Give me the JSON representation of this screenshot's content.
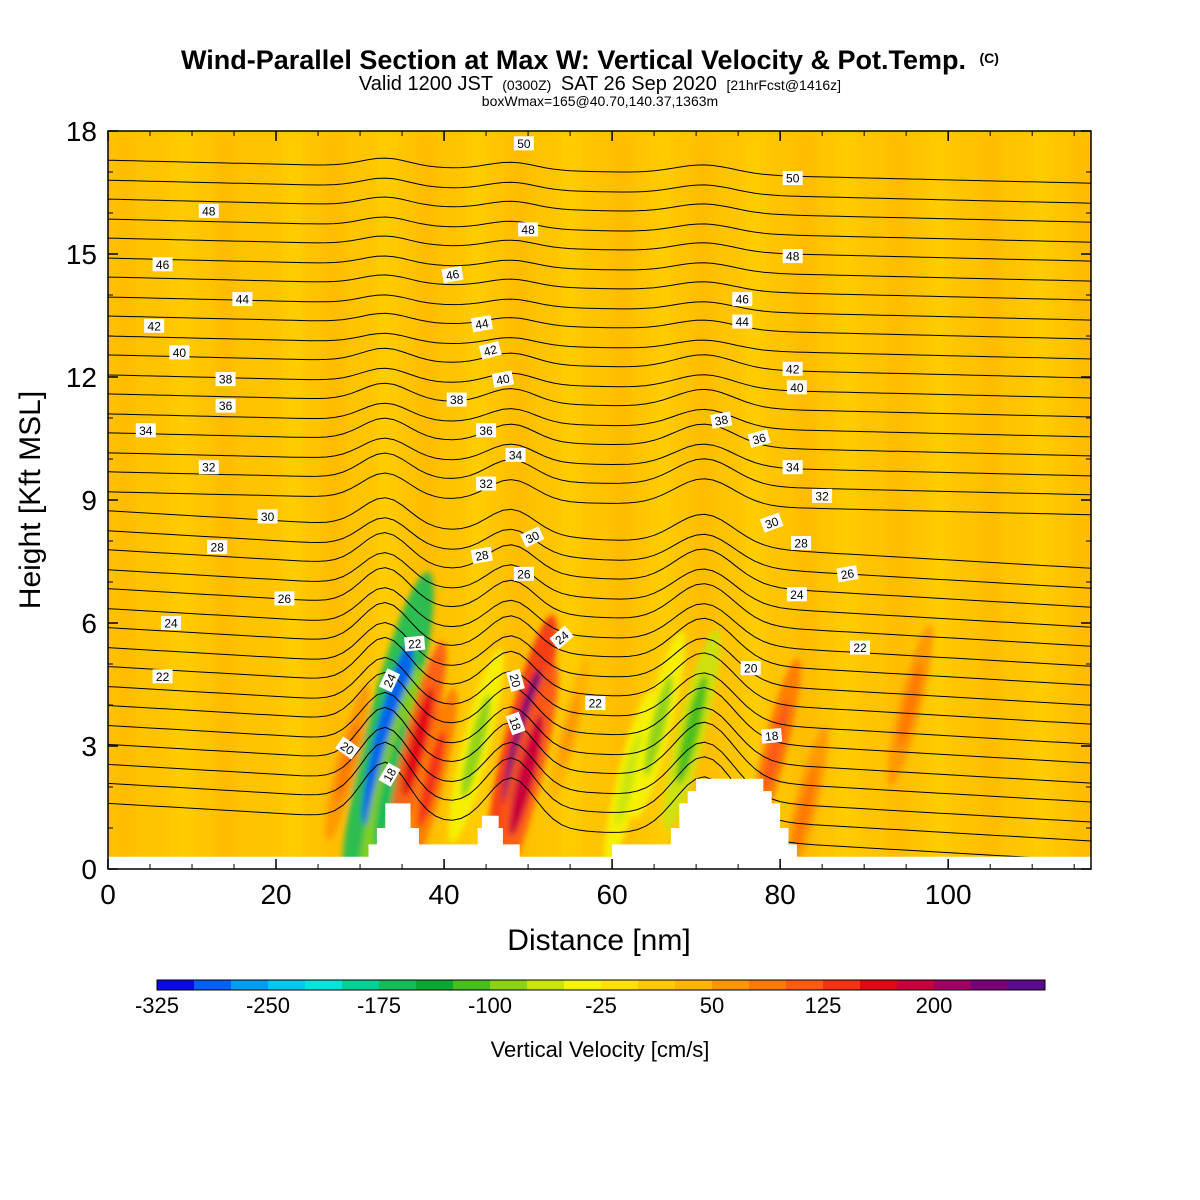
{
  "chart_data": {
    "type": "heatmap",
    "title": "Wind-Parallel Section at Max W: Vertical Velocity & Pot.Temp.",
    "title_mark": "(C)",
    "subtitle": {
      "valid_a": "Valid 1200 JST",
      "valid_b": "(0300Z)",
      "valid_c": "SAT 26 Sep 2020",
      "valid_d": "[21hrFcst@1416z]"
    },
    "subtitle2": "boxWmax=165@40.70,140.37,1363m",
    "xlabel": "Distance [nm]",
    "ylabel": "Height [Kft MSL]",
    "xlim": [
      0,
      117
    ],
    "ylim": [
      0,
      18
    ],
    "xticks": [
      "0",
      "20",
      "40",
      "60",
      "80",
      "100"
    ],
    "yticks": [
      "0",
      "3",
      "6",
      "9",
      "12",
      "15",
      "18"
    ],
    "colorbar": {
      "title": "Vertical Velocity [cm/s]",
      "tick_labels": [
        "-325",
        "-250",
        "-175",
        "-100",
        "-25",
        "50",
        "125",
        "200"
      ],
      "colors": [
        "#0a0ae8",
        "#005ff5",
        "#009cf5",
        "#00c8f0",
        "#00e6dc",
        "#00d296",
        "#14bc5a",
        "#0aa830",
        "#46be1e",
        "#8cd214",
        "#c8e60a",
        "#f5f500",
        "#ffe100",
        "#ffc800",
        "#ffb400",
        "#ff9600",
        "#ff7800",
        "#ff5a14",
        "#f53214",
        "#e10a14",
        "#c8003c",
        "#a00064",
        "#780078",
        "#5a0a8c"
      ]
    },
    "background_colors": {
      "weak_up": "#ffb400",
      "weak_down": "#ffd700",
      "ridge": "#ffffff"
    },
    "terrain_nm_kft": [
      [
        0,
        0.3
      ],
      [
        31,
        0.3
      ],
      [
        31,
        0.6
      ],
      [
        32,
        0.6
      ],
      [
        32,
        1
      ],
      [
        33,
        1
      ],
      [
        33,
        1.6
      ],
      [
        36,
        1.6
      ],
      [
        36,
        1
      ],
      [
        37,
        1
      ],
      [
        37,
        0.6
      ],
      [
        44,
        0.6
      ],
      [
        44,
        1
      ],
      [
        44.5,
        1
      ],
      [
        44.5,
        1.3
      ],
      [
        46.5,
        1.3
      ],
      [
        46.5,
        1
      ],
      [
        47,
        1
      ],
      [
        47,
        0.6
      ],
      [
        49,
        0.6
      ],
      [
        49,
        0.3
      ],
      [
        60,
        0.3
      ],
      [
        60,
        0.6
      ],
      [
        67,
        0.6
      ],
      [
        67,
        1
      ],
      [
        68,
        1
      ],
      [
        68,
        1.6
      ],
      [
        69,
        1.6
      ],
      [
        69,
        1.9
      ],
      [
        70,
        1.9
      ],
      [
        70,
        2.2
      ],
      [
        78,
        2.2
      ],
      [
        78,
        1.9
      ],
      [
        79,
        1.9
      ],
      [
        79,
        1.6
      ],
      [
        80,
        1.6
      ],
      [
        80,
        1
      ],
      [
        81,
        1
      ],
      [
        81,
        0.6
      ],
      [
        82,
        0.6
      ],
      [
        82,
        0.3
      ],
      [
        117,
        0.3
      ],
      [
        117,
        0
      ]
    ],
    "cells": [
      {
        "x": 33.3,
        "z": 3.3,
        "w": -320
      },
      {
        "x": 33.8,
        "z": 2.1,
        "w": -180
      },
      {
        "x": 36.9,
        "z": 3.1,
        "w": 130
      },
      {
        "x": 38.5,
        "z": 2.2,
        "w": 100
      },
      {
        "x": 43.8,
        "z": 3.0,
        "w": -120
      },
      {
        "x": 49.3,
        "z": 3.2,
        "w": 200
      },
      {
        "x": 49.8,
        "z": 2.3,
        "w": 165
      },
      {
        "x": 55,
        "z": 3.4,
        "w": 40
      },
      {
        "x": 62,
        "z": 2.2,
        "w": -90
      },
      {
        "x": 65.5,
        "z": 3.5,
        "w": -110
      },
      {
        "x": 69.5,
        "z": 3.4,
        "w": -130
      },
      {
        "x": 79.5,
        "z": 3.0,
        "w": 90
      },
      {
        "x": 83,
        "z": 1.5,
        "w": 70
      },
      {
        "x": 95.5,
        "z": 4.0,
        "w": 70
      },
      {
        "x": 28.5,
        "z": 2.6,
        "w": 60
      }
    ],
    "theta_levels": [
      18,
      20,
      22,
      24,
      26,
      28,
      30,
      32,
      34,
      36,
      38,
      40,
      42,
      44,
      46,
      48,
      50
    ],
    "contour_labels": [
      {
        "text": "50",
        "x": 49.5,
        "z": 17.7,
        "rot": 0
      },
      {
        "text": "50",
        "x": 81.5,
        "z": 16.85,
        "rot": 0
      },
      {
        "text": "48",
        "x": 12,
        "z": 16.05,
        "rot": 0
      },
      {
        "text": "48",
        "x": 50,
        "z": 15.6,
        "rot": 0
      },
      {
        "text": "48",
        "x": 81.5,
        "z": 14.95,
        "rot": 0
      },
      {
        "text": "46",
        "x": 6.5,
        "z": 14.75,
        "rot": 0
      },
      {
        "text": "46",
        "x": 41,
        "z": 14.5,
        "rot": -10
      },
      {
        "text": "46",
        "x": 75.5,
        "z": 13.9,
        "rot": 0
      },
      {
        "text": "44",
        "x": 16,
        "z": 13.9,
        "rot": 0
      },
      {
        "text": "44",
        "x": 44.5,
        "z": 13.3,
        "rot": -10
      },
      {
        "text": "44",
        "x": 75.5,
        "z": 13.35,
        "rot": 0
      },
      {
        "text": "42",
        "x": 5.5,
        "z": 13.25,
        "rot": 0
      },
      {
        "text": "42",
        "x": 45.5,
        "z": 12.65,
        "rot": -15
      },
      {
        "text": "42",
        "x": 81.5,
        "z": 12.2,
        "rot": 0
      },
      {
        "text": "40",
        "x": 8.5,
        "z": 12.6,
        "rot": 0
      },
      {
        "text": "40",
        "x": 47,
        "z": 11.95,
        "rot": -10
      },
      {
        "text": "40",
        "x": 82,
        "z": 11.75,
        "rot": 0
      },
      {
        "text": "38",
        "x": 14,
        "z": 11.95,
        "rot": 0
      },
      {
        "text": "38",
        "x": 41.5,
        "z": 11.45,
        "rot": 0
      },
      {
        "text": "38",
        "x": 73,
        "z": 10.95,
        "rot": -10
      },
      {
        "text": "36",
        "x": 14,
        "z": 11.3,
        "rot": 0
      },
      {
        "text": "36",
        "x": 45,
        "z": 10.7,
        "rot": 0
      },
      {
        "text": "36",
        "x": 77.5,
        "z": 10.5,
        "rot": -15
      },
      {
        "text": "34",
        "x": 4.5,
        "z": 10.7,
        "rot": 0
      },
      {
        "text": "34",
        "x": 48.5,
        "z": 10.1,
        "rot": 0
      },
      {
        "text": "34",
        "x": 81.5,
        "z": 9.8,
        "rot": 0
      },
      {
        "text": "32",
        "x": 12,
        "z": 9.8,
        "rot": 0
      },
      {
        "text": "32",
        "x": 45,
        "z": 9.4,
        "rot": 0
      },
      {
        "text": "32",
        "x": 85,
        "z": 9.1,
        "rot": 0
      },
      {
        "text": "30",
        "x": 19,
        "z": 8.6,
        "rot": 0
      },
      {
        "text": "30",
        "x": 50.5,
        "z": 8.1,
        "rot": -25
      },
      {
        "text": "30",
        "x": 79,
        "z": 8.45,
        "rot": -20
      },
      {
        "text": "28",
        "x": 13,
        "z": 7.85,
        "rot": 0
      },
      {
        "text": "28",
        "x": 44.5,
        "z": 7.65,
        "rot": -10
      },
      {
        "text": "28",
        "x": 82.5,
        "z": 7.95,
        "rot": 0
      },
      {
        "text": "26",
        "x": 21,
        "z": 6.6,
        "rot": 0
      },
      {
        "text": "26",
        "x": 49.5,
        "z": 7.2,
        "rot": 0
      },
      {
        "text": "26",
        "x": 88,
        "z": 7.2,
        "rot": -10
      },
      {
        "text": "24",
        "x": 7.5,
        "z": 6.0,
        "rot": 0
      },
      {
        "text": "24",
        "x": 33.5,
        "z": 4.6,
        "rot": -65
      },
      {
        "text": "24",
        "x": 54,
        "z": 5.65,
        "rot": -40
      },
      {
        "text": "24",
        "x": 82,
        "z": 6.7,
        "rot": 0
      },
      {
        "text": "22",
        "x": 6.5,
        "z": 4.7,
        "rot": 0
      },
      {
        "text": "22",
        "x": 36.5,
        "z": 5.5,
        "rot": -5
      },
      {
        "text": "22",
        "x": 58,
        "z": 4.05,
        "rot": 0
      },
      {
        "text": "22",
        "x": 89.5,
        "z": 5.4,
        "rot": 0
      },
      {
        "text": "20",
        "x": 28.5,
        "z": 2.95,
        "rot": 35
      },
      {
        "text": "20",
        "x": 48.5,
        "z": 4.6,
        "rot": 75
      },
      {
        "text": "20",
        "x": 76.5,
        "z": 4.9,
        "rot": 0
      },
      {
        "text": "18",
        "x": 33.5,
        "z": 2.3,
        "rot": -60
      },
      {
        "text": "18",
        "x": 48.5,
        "z": 3.55,
        "rot": 70
      },
      {
        "text": "18",
        "x": 79,
        "z": 3.25,
        "rot": -5
      }
    ]
  }
}
